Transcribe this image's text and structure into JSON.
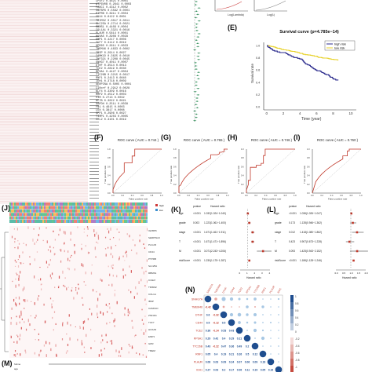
{
  "panels": {
    "E": "(E)",
    "F": "(F)",
    "G": "(G)",
    "H": "(H)",
    "I": "(I)",
    "J": "(J)",
    "K": "(K)",
    "L": "(L)",
    "M": "(M)",
    "N": "(N)"
  },
  "top_plots": {
    "left_xlabel": "Log(Lambda)",
    "right_xlabel": "Log(λ)"
  },
  "survival": {
    "title": "Survival curve (p=4.785e−14)",
    "ylabel": "Survival rate",
    "xlabel": "Time (year)",
    "legend": [
      "high risk",
      "low risk"
    ],
    "colors": {
      "high": "#2a2a8c",
      "low": "#e8d22c"
    },
    "xticks": [
      "0",
      "2",
      "4",
      "6",
      "8",
      "10"
    ],
    "yticks": [
      "0.0",
      "0.2",
      "0.4",
      "0.6",
      "0.8",
      "1.0"
    ]
  },
  "roc": [
    {
      "title": "ROC curve ( AUC = 0.744 )"
    },
    {
      "title": "ROC curve ( AUC = 0.765 )"
    },
    {
      "title": "ROC curve ( AUC = 0.746 )"
    },
    {
      "title": "ROC curve ( AUC = 0.760 )"
    }
  ],
  "roc_axes": {
    "xlabel": "False positive rate",
    "ylabel": "True positive rate",
    "ticks": [
      "0.0",
      "0.2",
      "0.4",
      "0.6",
      "0.8",
      "1.0"
    ]
  },
  "forest_k": {
    "header": {
      "p": "pvalue",
      "hr": "Hazard ratio"
    },
    "rows": [
      {
        "name": "age",
        "p": "<0.001",
        "hr": "1.032(1.024−1.040)"
      },
      {
        "name": "grade",
        "p": "0.003",
        "hr": "1.223(1.061−1.400)"
      },
      {
        "name": "stage",
        "p": "<0.001",
        "hr": "1.671(1.461−1.911)"
      },
      {
        "name": "T",
        "p": "<0.001",
        "hr": "1.671(1.471−1.896)"
      },
      {
        "name": "M",
        "p": "<0.001",
        "hr": "3.071(2.243−4.206)"
      },
      {
        "name": "riskScore",
        "p": "<0.001",
        "hr": "1.230(1.175−1.287)"
      }
    ],
    "xlabel": "Hazard ratio",
    "xticks": [
      "0",
      "1",
      "2",
      "3",
      "4"
    ]
  },
  "forest_l": {
    "header": {
      "p": "pvalue",
      "hr": "Hazard ratio"
    },
    "rows": [
      {
        "name": "age",
        "p": "<0.001",
        "hr": "1.036(1.026−1.047)"
      },
      {
        "name": "grade",
        "p": "0.173",
        "hr": "1.135(0.946−1.362)"
      },
      {
        "name": "stage",
        "p": "0.012",
        "hr": "1.418(1.080−1.862)"
      },
      {
        "name": "T",
        "p": "0.423",
        "hr": "0.907(0.673−1.228)"
      },
      {
        "name": "M",
        "p": "0.093",
        "hr": "1.425(0.943−2.152)"
      },
      {
        "name": "riskScore",
        "p": "<0.001",
        "hr": "1.186(1.128−1.246)"
      }
    ],
    "xlabel": "Hazard ratio",
    "xticks": [
      "0.0",
      "0.5",
      "1.0",
      "1.5",
      "2.0"
    ]
  },
  "heatmap_j": {
    "genes": [
      "IGFBP6",
      "SERPINA3",
      "PLAUR",
      "CD44",
      "PTPRB",
      "SLC25A",
      "RBMS1",
      "C10orf",
      "TRIM32",
      "COL1A",
      "IBSP",
      "CAMK1D",
      "ZNF321",
      "TCF7",
      "HOXA5",
      "EMP1",
      "GPR",
      "TMEM"
    ],
    "legend": [
      "high",
      "low"
    ],
    "colors": {
      "hot": "#cf3a3a",
      "bg": "#fdf6f6"
    }
  },
  "corr": {
    "genes": [
      "SNHG7A",
      "TMEM46",
      "DTHF",
      "CD44",
      "TCE2",
      "RPSA1",
      "TTC26B",
      "RNF1",
      "PLAUR",
      "IDH1"
    ],
    "lower": [
      [
        "-0.42"
      ],
      [
        "0.6",
        "-0.32"
      ],
      [
        "0.5",
        "-0.12",
        "0.5"
      ],
      [
        "0.36",
        "-0.14",
        "0.53",
        "0.43"
      ],
      [
        "0.29",
        "0.42",
        "0.4",
        "0.29",
        "0.21"
      ],
      [
        "0.43",
        "-0.22",
        "0.47",
        "0.36",
        "0.49",
        "0.2"
      ],
      [
        "0.05",
        "0.4",
        "0.19",
        "0.21",
        "0.26",
        "0.5",
        "0.12"
      ],
      [
        "0.08",
        "0.03",
        "0.09",
        "0.24",
        "0.07",
        "0.06",
        "0.09",
        "0.18"
      ],
      [
        "0.27",
        "0.03",
        "0.2",
        "0.17",
        "0.06",
        "0.11",
        "0.19",
        "0.05",
        "0.16"
      ]
    ],
    "scale": [
      "1",
      "0.8",
      "0.6",
      "0.4",
      "0.2",
      "0",
      "-0.2",
      "-0.4",
      "-0.6",
      "-0.8",
      "-1"
    ],
    "colors": {
      "pos": "#1f4e8f",
      "neg": "#c0392b"
    }
  },
  "m_axis": {
    "rows": [
      "futime",
      "age"
    ]
  },
  "table_b": [
    "CPSF2   0.4821  0.0001",
    "ATP6V0B 0.2641  0.0003",
    "FANCI   0.4312  0.0002",
    "IGFBP6  0.5582  0.0001",
    "PTPRB   0.3911  0.0004",
    "CD44    0.6122  0.0001",
    "TRIM32  0.3017  0.0011",
    "SLC25A  0.2714  0.0021",
    "RBMS1   0.4409  0.0004",
    "COL1A1  0.3321  0.0016",
    "PLAUR   0.5814  0.0001",
    "HOXA5   0.2908  0.0029",
    "EMP1    0.4217  0.0006",
    "TCF7    0.3112  0.0019",
    "GPR65   0.2611  0.0033",
    "TMEM46  0.4833  0.0002",
    "IBSP    0.2914  0.0027",
    "CAMK1D  0.3625  0.0010",
    "ZNF321  0.2208  0.0045",
    "SNHG7   0.4011  0.0007",
    "DTHF    0.3514  0.0013",
    "TCE2    0.2819  0.0030",
    "RPSA1   0.4427  0.0004",
    "TTC26B  0.3215  0.0017",
    "RNF1    0.2413  0.0040",
    "IDH1    0.3718  0.0009",
    "SERPINA 0.5005  0.0001",
    "C10orf  0.2912  0.0028",
    "KLF4    0.3309  0.0016",
    "MMP2    0.4512  0.0003",
    "VIM     0.2713  0.0032",
    "ACTB    0.3022  0.0021",
    "GAPDH   0.2511  0.0038",
    "FN1     0.4615  0.0003",
    "LOX     0.3817  0.0008",
    "SPP1    0.2906  0.0027",
    "TIMP1   0.4203  0.0005",
    "CCL2    0.3101  0.0019"
  ]
}
